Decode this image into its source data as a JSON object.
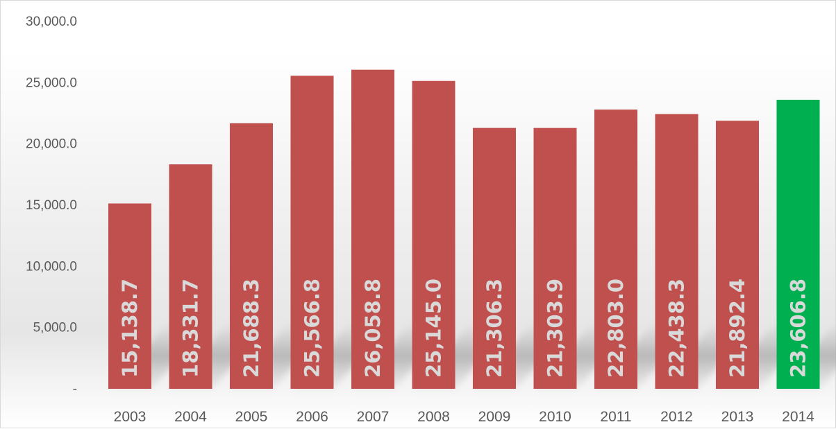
{
  "chart_data": {
    "type": "bar",
    "categories": [
      "2003",
      "2004",
      "2005",
      "2006",
      "2007",
      "2008",
      "2009",
      "2010",
      "2011",
      "2012",
      "2013",
      "2014"
    ],
    "values": [
      15138.7,
      18331.7,
      21688.3,
      25566.8,
      26058.8,
      25145.0,
      21306.3,
      21303.9,
      22803.0,
      22438.3,
      21892.4,
      23606.8
    ],
    "data_labels": [
      "15,138.7",
      "18,331.7",
      "21,688.3",
      "25,566.8",
      "26,058.8",
      "25,145.0",
      "21,306.3",
      "21,303.9",
      "22,803.0",
      "22,438.3",
      "21,892.4",
      "23,606.8"
    ],
    "y_tick_labels": [
      "-",
      "5,000.0",
      "10,000.0",
      "15,000.0",
      "20,000.0",
      "25,000.0",
      "30,000.0"
    ],
    "y_tick_values": [
      0,
      5000,
      10000,
      15000,
      20000,
      25000,
      30000
    ],
    "ylim": [
      0,
      30000
    ],
    "title": "",
    "xlabel": "",
    "ylabel": "",
    "grid": false,
    "legend": "none",
    "data_label_orientation": "vertical",
    "colors": {
      "bar": "#c0504d",
      "highlight_bar": "#00b050",
      "data_label": "#d9d9d9",
      "tick_label": "#595959"
    },
    "highlight_category": "2014"
  }
}
